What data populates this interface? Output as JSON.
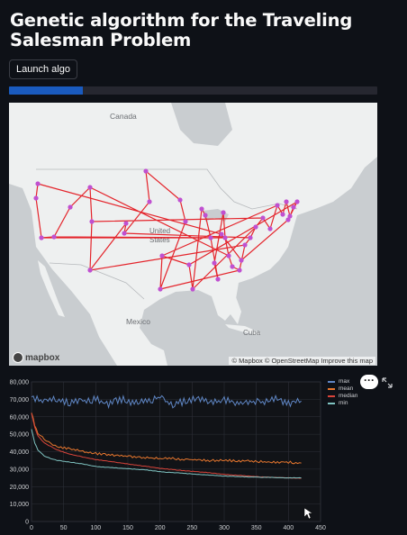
{
  "app": {
    "title": "Genetic algorithm for the Traveling Salesman Problem",
    "launch_label": "Launch algo",
    "progress_fraction": 0.2
  },
  "map": {
    "labels": {
      "canada": "Canada",
      "united_states": "United States",
      "mexico": "Mexico",
      "cuba": "Cuba"
    },
    "attribution": "© Mapbox © OpenStreetMap Improve this map",
    "logo_text": "mapbox",
    "route_color": "#e4242b",
    "city_color": "#c050d0"
  },
  "chart_data": {
    "type": "line",
    "title": "",
    "xlabel": "",
    "ylabel": "",
    "xlim": [
      0,
      450
    ],
    "ylim": [
      0,
      80000
    ],
    "x_ticks": [
      0,
      50,
      100,
      150,
      200,
      250,
      300,
      350,
      400,
      450
    ],
    "y_ticks": [
      0,
      10000,
      20000,
      30000,
      40000,
      50000,
      60000,
      70000,
      80000
    ],
    "y_tick_labels": [
      "0",
      "10,000",
      "20,000",
      "30,000",
      "40,000",
      "50,000",
      "60,000",
      "70,000",
      "80,000"
    ],
    "grid": true,
    "legend_position": "top-right",
    "series": [
      {
        "name": "max",
        "color": "#5f86c4",
        "x": [
          0,
          20,
          40,
          60,
          80,
          100,
          120,
          140,
          160,
          180,
          200,
          220,
          240,
          260,
          280,
          300,
          320,
          340,
          360,
          380,
          400,
          420
        ],
        "values": [
          71000,
          69000,
          70000,
          68000,
          69000,
          70000,
          67000,
          70000,
          68000,
          69000,
          71000,
          67000,
          69000,
          70000,
          68000,
          70000,
          67000,
          69000,
          68000,
          70000,
          68000,
          69000
        ]
      },
      {
        "name": "mean",
        "color": "#e8772e",
        "x": [
          0,
          5,
          10,
          20,
          30,
          40,
          60,
          80,
          100,
          120,
          140,
          160,
          180,
          200,
          220,
          240,
          260,
          280,
          300,
          320,
          340,
          360,
          380,
          400,
          420
        ],
        "values": [
          63000,
          55000,
          51000,
          47000,
          45000,
          43000,
          41500,
          40000,
          39000,
          38000,
          37500,
          37000,
          36500,
          36000,
          36000,
          35500,
          35500,
          35000,
          35000,
          34800,
          34500,
          34200,
          34000,
          34000,
          33500
        ]
      },
      {
        "name": "median",
        "color": "#d9443a",
        "x": [
          0,
          5,
          10,
          20,
          30,
          40,
          60,
          80,
          100,
          120,
          140,
          160,
          180,
          200,
          220,
          240,
          260,
          280,
          300,
          320,
          340,
          360,
          380,
          400,
          420
        ],
        "values": [
          62000,
          54000,
          49000,
          45000,
          43000,
          41000,
          38500,
          37000,
          35500,
          34500,
          33500,
          32500,
          31500,
          30500,
          29800,
          29000,
          28500,
          27800,
          27000,
          26500,
          26000,
          25500,
          25200,
          25000,
          24800
        ]
      },
      {
        "name": "min",
        "color": "#7fc3c1",
        "x": [
          0,
          5,
          10,
          20,
          30,
          40,
          60,
          80,
          100,
          120,
          140,
          160,
          180,
          200,
          220,
          240,
          260,
          280,
          300,
          320,
          340,
          360,
          380,
          400,
          420
        ],
        "values": [
          53000,
          45000,
          41000,
          37500,
          36000,
          35000,
          34000,
          33000,
          31500,
          31000,
          30500,
          30000,
          29500,
          28500,
          28000,
          27500,
          27000,
          26500,
          26000,
          25800,
          25500,
          25300,
          25200,
          25000,
          25000
        ]
      }
    ]
  }
}
